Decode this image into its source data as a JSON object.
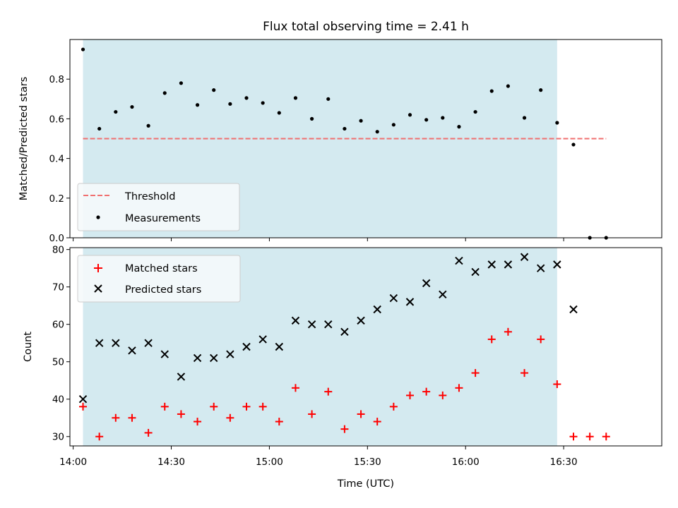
{
  "chart_data": [
    {
      "type": "scatter",
      "title": "Flux total observing time = 2.41 h",
      "xlabel": "",
      "ylabel": "Matched/Predicted stars",
      "ylim": [
        0,
        1.0
      ],
      "yticks": [
        "0.0",
        "0.2",
        "0.4",
        "0.6",
        "0.8"
      ],
      "ytick_values": [
        0,
        0.2,
        0.4,
        0.6,
        0.8
      ],
      "xlim": [
        "13:59",
        "17:00"
      ],
      "shaded_interval": [
        "14:03",
        "16:28"
      ],
      "shade_color": "#d4eaf0",
      "legend": {
        "placement": "lower-left",
        "entries": [
          "Threshold",
          "Measurements"
        ]
      },
      "series": [
        {
          "name": "Threshold",
          "style": "dashed-line",
          "color": "#f07070",
          "x": [
            "14:03",
            "16:43"
          ],
          "y": [
            0.5,
            0.5
          ]
        },
        {
          "name": "Measurements",
          "style": "dot",
          "color": "#000000",
          "x": [
            "14:03",
            "14:08",
            "14:13",
            "14:18",
            "14:23",
            "14:28",
            "14:33",
            "14:38",
            "14:43",
            "14:48",
            "14:53",
            "14:58",
            "15:03",
            "15:08",
            "15:13",
            "15:18",
            "15:23",
            "15:28",
            "15:33",
            "15:38",
            "15:43",
            "15:48",
            "15:53",
            "15:58",
            "16:03",
            "16:08",
            "16:13",
            "16:18",
            "16:23",
            "16:28",
            "16:33",
            "16:38",
            "16:43"
          ],
          "y": [
            0.95,
            0.55,
            0.635,
            0.66,
            0.565,
            0.73,
            0.78,
            0.67,
            0.745,
            0.675,
            0.705,
            0.68,
            0.63,
            0.705,
            0.6,
            0.7,
            0.55,
            0.59,
            0.535,
            0.57,
            0.62,
            0.595,
            0.605,
            0.56,
            0.635,
            0.74,
            0.765,
            0.605,
            0.745,
            0.58,
            0.47,
            0.0,
            0.0
          ]
        }
      ]
    },
    {
      "type": "scatter",
      "xlabel": "Time (UTC)",
      "ylabel": "Count",
      "ylim": [
        27.5,
        80.5
      ],
      "yticks": [
        "30",
        "40",
        "50",
        "60",
        "70",
        "80"
      ],
      "ytick_values": [
        30,
        40,
        50,
        60,
        70,
        80
      ],
      "xticks": [
        "14:00",
        "14:30",
        "15:00",
        "15:30",
        "16:00",
        "16:30"
      ],
      "xtick_values": [
        "14:00",
        "14:30",
        "15:00",
        "15:30",
        "16:00",
        "16:30"
      ],
      "xlim": [
        "13:59",
        "17:00"
      ],
      "shaded_interval": [
        "14:03",
        "16:28"
      ],
      "shade_color": "#d4eaf0",
      "legend": {
        "placement": "upper-left",
        "entries": [
          "Matched stars",
          "Predicted stars"
        ]
      },
      "series": [
        {
          "name": "Matched stars",
          "style": "plus",
          "color": "#ff0000",
          "x": [
            "14:03",
            "14:08",
            "14:13",
            "14:18",
            "14:23",
            "14:28",
            "14:33",
            "14:38",
            "14:43",
            "14:48",
            "14:53",
            "14:58",
            "15:03",
            "15:08",
            "15:13",
            "15:18",
            "15:23",
            "15:28",
            "15:33",
            "15:38",
            "15:43",
            "15:48",
            "15:53",
            "15:58",
            "16:03",
            "16:08",
            "16:13",
            "16:18",
            "16:23",
            "16:28",
            "16:33",
            "16:38",
            "16:43"
          ],
          "y": [
            38,
            30,
            35,
            35,
            31,
            38,
            36,
            34,
            38,
            35,
            38,
            38,
            34,
            43,
            36,
            42,
            32,
            36,
            34,
            38,
            41,
            42,
            41,
            43,
            47,
            56,
            58,
            47,
            56,
            44,
            30,
            30,
            30
          ]
        },
        {
          "name": "Predicted stars",
          "style": "x",
          "color": "#000000",
          "x": [
            "14:03",
            "14:08",
            "14:13",
            "14:18",
            "14:23",
            "14:28",
            "14:33",
            "14:38",
            "14:43",
            "14:48",
            "14:53",
            "14:58",
            "15:03",
            "15:08",
            "15:13",
            "15:18",
            "15:23",
            "15:28",
            "15:33",
            "15:38",
            "15:43",
            "15:48",
            "15:53",
            "15:58",
            "16:03",
            "16:08",
            "16:13",
            "16:18",
            "16:23",
            "16:28",
            "16:33"
          ],
          "y": [
            40,
            55,
            55,
            53,
            55,
            52,
            46,
            51,
            51,
            52,
            54,
            56,
            54,
            61,
            60,
            60,
            58,
            61,
            64,
            67,
            66,
            71,
            68,
            77,
            74,
            76,
            76,
            78,
            75,
            76,
            64
          ]
        }
      ]
    }
  ]
}
